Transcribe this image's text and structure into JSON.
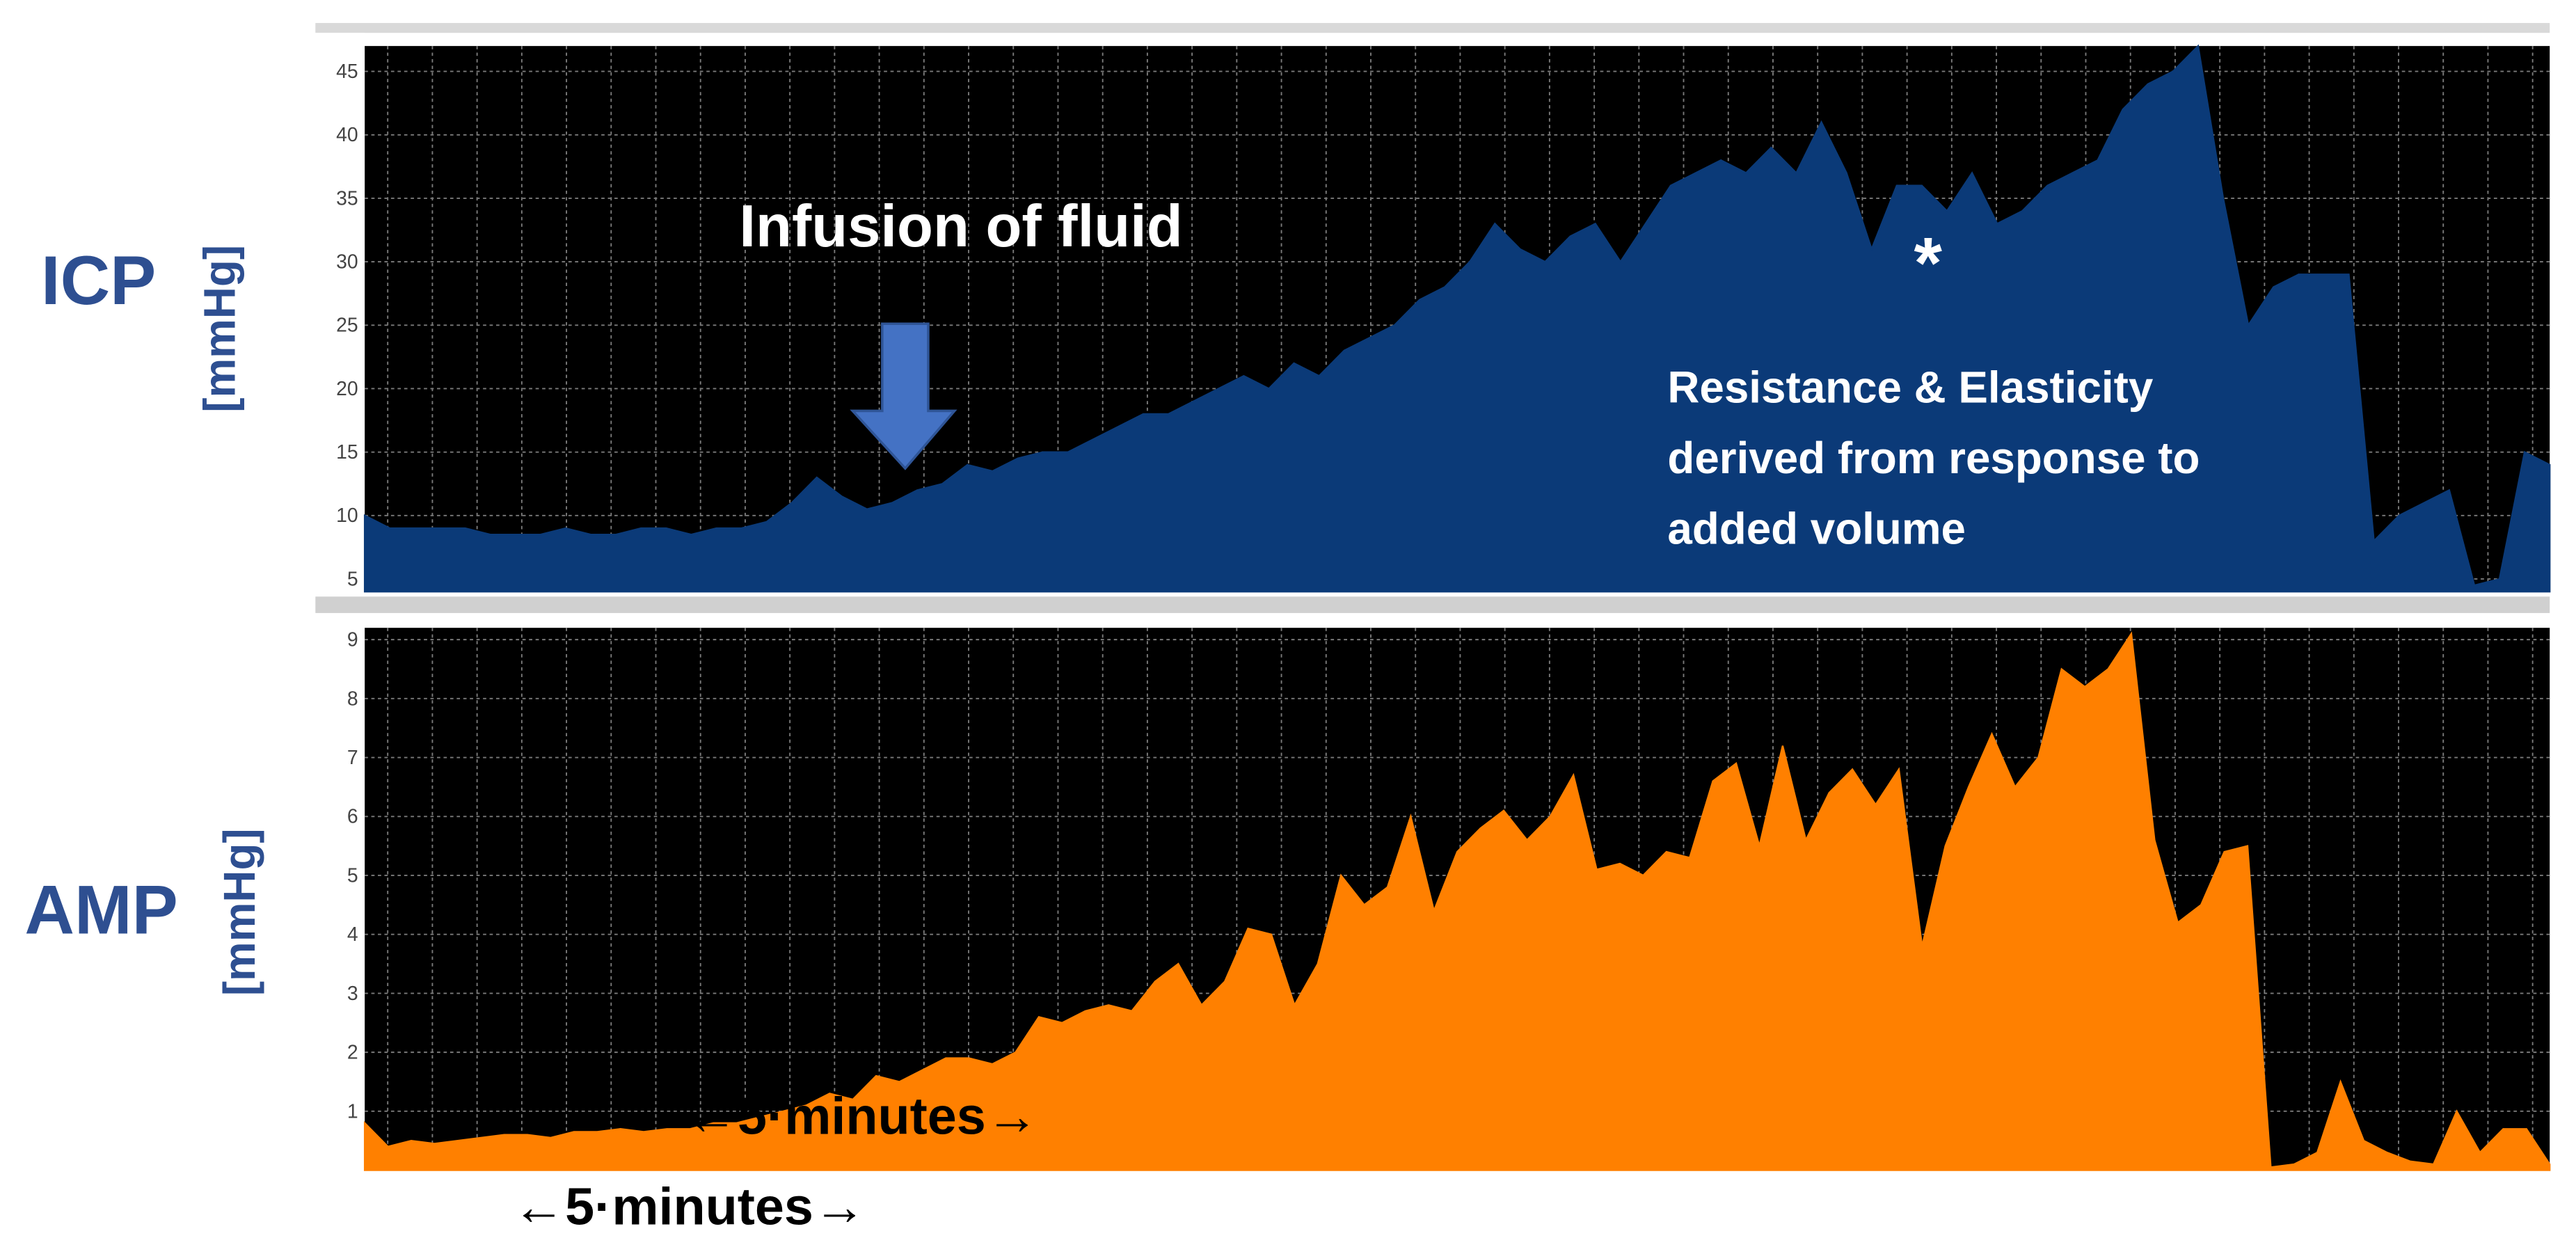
{
  "chart_data": [
    {
      "type": "area",
      "ylabel": "ICP",
      "yunit": "[mmHg]",
      "color": "#0b3a78",
      "ylim": [
        4,
        47
      ],
      "yticks": [
        5,
        10,
        15,
        20,
        25,
        30,
        35,
        40,
        45
      ],
      "grid": true,
      "annotations": [
        "Infusion of fluid",
        "*",
        "Resistance & Elasticity",
        "derived from response to",
        "added volume"
      ],
      "values": [
        10,
        9,
        9,
        9,
        9,
        8.5,
        8.5,
        8.5,
        9,
        8.5,
        8.5,
        9,
        9,
        8.5,
        9,
        9,
        9.5,
        11,
        13,
        11.5,
        10.5,
        11,
        12,
        12.5,
        14,
        13.5,
        14.5,
        15,
        15,
        16,
        17,
        18,
        18,
        19,
        20,
        21,
        20,
        22,
        21,
        23,
        24,
        25,
        27,
        28,
        30,
        33,
        31,
        30,
        32,
        33,
        30,
        33,
        36,
        37,
        38,
        37,
        39,
        37,
        41,
        37,
        31,
        36,
        36,
        34,
        37,
        33,
        34,
        36,
        37,
        38,
        42,
        44,
        45,
        47,
        35,
        25,
        28,
        29,
        29,
        29,
        8,
        10,
        11,
        12,
        4.5,
        5,
        15,
        14
      ]
    },
    {
      "type": "area",
      "ylabel": "AMP",
      "yunit": "[mmHg]",
      "color": "#ff8000",
      "ylim": [
        0,
        9.2
      ],
      "yticks": [
        1,
        2,
        3,
        4,
        5,
        6,
        7,
        8,
        9
      ],
      "grid": true,
      "annotations": [
        "←5·minutes→",
        "←5·minutes→"
      ],
      "values": [
        0.8,
        0.4,
        0.5,
        0.45,
        0.5,
        0.55,
        0.6,
        0.6,
        0.55,
        0.65,
        0.65,
        0.7,
        0.65,
        0.7,
        0.7,
        0.8,
        0.8,
        0.9,
        1.0,
        1.1,
        1.3,
        1.2,
        1.6,
        1.5,
        1.7,
        1.9,
        1.9,
        1.8,
        2.0,
        2.6,
        2.5,
        2.7,
        2.8,
        2.7,
        3.2,
        3.5,
        2.8,
        3.2,
        4.1,
        4.0,
        2.8,
        3.5,
        5.0,
        4.5,
        4.8,
        6.0,
        4.4,
        5.4,
        5.8,
        6.1,
        5.6,
        6.0,
        6.7,
        5.1,
        5.2,
        5.0,
        5.4,
        5.3,
        6.6,
        6.9,
        5.5,
        7.2,
        5.6,
        6.4,
        6.8,
        6.2,
        6.8,
        3.8,
        5.5,
        6.5,
        7.4,
        6.5,
        7.0,
        8.5,
        8.2,
        8.5,
        9.1,
        5.6,
        4.2,
        4.5,
        5.4,
        5.5,
        0.05,
        0.1,
        0.3,
        1.5,
        0.5,
        0.3,
        0.15,
        0.1,
        1.0,
        0.3,
        0.7,
        0.7,
        0.1
      ]
    }
  ]
}
